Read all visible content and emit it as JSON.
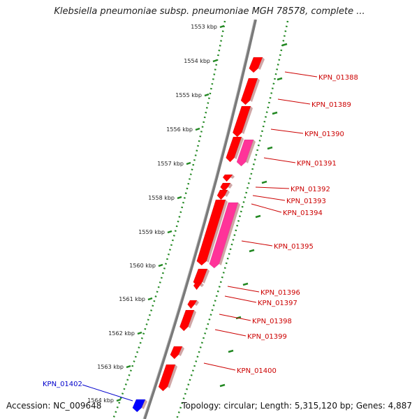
{
  "title": "Klebsiella pneumoniae subsp. pneumoniae MGH 78578, complete ...",
  "footer": {
    "accession": "Accession: NC_009648",
    "summary": "Topology: circular; Length: 5,315,120 bp; Genes: 4,887"
  },
  "colors": {
    "forward_gene": "#ff0000",
    "reverse_gene": "#0000ff",
    "pink_gene": "#ff3399",
    "label_forward": "#cc0000",
    "label_reverse": "#0000cc",
    "backbone": "#808080",
    "scale_dots": "#228822"
  },
  "scale_ticks": [
    "1553 kbp",
    "1554 kbp",
    "1555 kbp",
    "1556 kbp",
    "1557 kbp",
    "1558 kbp",
    "1559 kbp",
    "1560 kbp",
    "1561 kbp",
    "1562 kbp",
    "1563 kbp",
    "1564 kbp"
  ],
  "gene_labels": [
    "KPN_01388",
    "KPN_01389",
    "KPN_01390",
    "KPN_01391",
    "KPN_01392",
    "KPN_01393",
    "KPN_01394",
    "KPN_01395",
    "KPN_01396",
    "KPN_01397",
    "KPN_01398",
    "KPN_01399",
    "KPN_01400"
  ],
  "reverse_gene_label": "KPN_01402"
}
